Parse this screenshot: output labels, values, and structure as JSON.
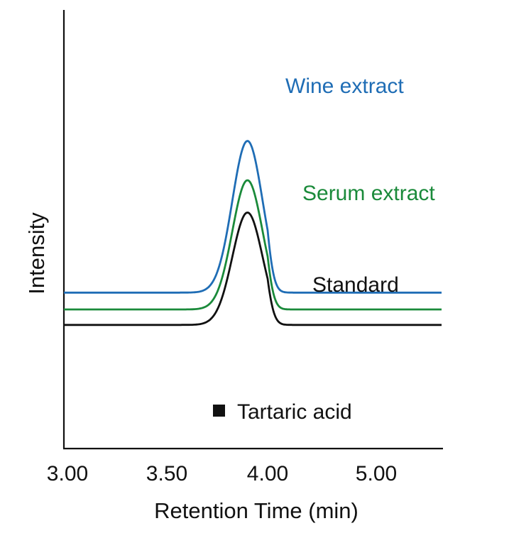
{
  "chart_data": {
    "type": "line",
    "title": "",
    "xlabel": "Retention Time (min)",
    "ylabel": "Intensity",
    "x_ticks": [
      "3.00",
      "3.50",
      "4.00",
      "5.00"
    ],
    "x_tick_values": [
      3.0,
      3.5,
      4.0,
      5.0
    ],
    "grid": false,
    "series": [
      {
        "name": "Wine extract",
        "color": "#1f6db5",
        "peak_rt": 3.9,
        "baseline": 0.6,
        "peak_height": 5.4
      },
      {
        "name": "Serum extract",
        "color": "#1a8a3a",
        "peak_rt": 3.9,
        "baseline": 0.0,
        "peak_height": 4.6
      },
      {
        "name": "Standard",
        "color": "#111111",
        "peak_rt": 3.9,
        "baseline": -0.55,
        "peak_height": 4.0
      }
    ],
    "legend": [
      {
        "label": "Tartaric acid",
        "marker": "square",
        "color": "#111111"
      }
    ],
    "legend_position": "bottom-center"
  }
}
